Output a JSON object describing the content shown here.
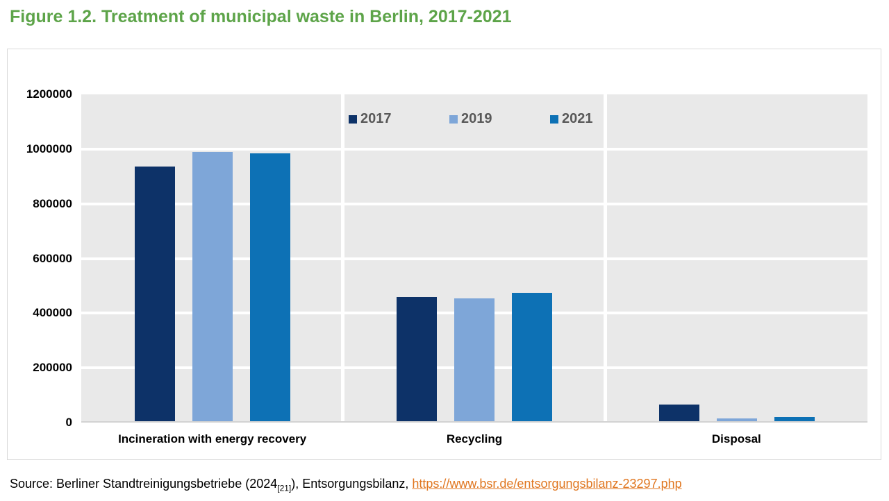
{
  "title": "Figure 1.2. Treatment of municipal waste in Berlin, 2017-2021",
  "chart_data": {
    "type": "bar",
    "title": "Figure 1.2. Treatment of municipal waste in Berlin, 2017-2021",
    "categories": [
      "Incineration with energy recovery",
      "Recycling",
      "Disposal"
    ],
    "series": [
      {
        "name": "2017",
        "color": "#0d3268",
        "values": [
          930000,
          455000,
          60000
        ]
      },
      {
        "name": "2019",
        "color": "#7ea6d8",
        "values": [
          985000,
          450000,
          10000
        ]
      },
      {
        "name": "2021",
        "color": "#0d71b5",
        "values": [
          980000,
          470000,
          15000
        ]
      }
    ],
    "xlabel": "",
    "ylabel": "",
    "ylim": [
      0,
      1200000
    ],
    "ytick_interval": 200000,
    "yticks": [
      "1200000",
      "1000000",
      "800000",
      "600000",
      "400000",
      "200000",
      "0"
    ],
    "grid": true,
    "legend_position": "top-center-inside"
  },
  "source": {
    "prefix": "Source: Berliner Standtreinigungsbetriebe (2024",
    "subscript": "[21]",
    "middle": "), Entsorgungsbilanz, ",
    "link_text": "https://www.bsr.de/entsorgungsbilanz-23297.php",
    "link_href": "https://www.bsr.de/entsorgungsbilanz-23297.php"
  },
  "colors": {
    "title": "#5da449",
    "link": "#e0761f",
    "plot_bg": "#e9e9e9",
    "gridline": "#ffffff",
    "legend_text": "#595959",
    "chart_border": "#d9d9d9",
    "baseline": "#d2d2d2",
    "text": "#000000"
  }
}
